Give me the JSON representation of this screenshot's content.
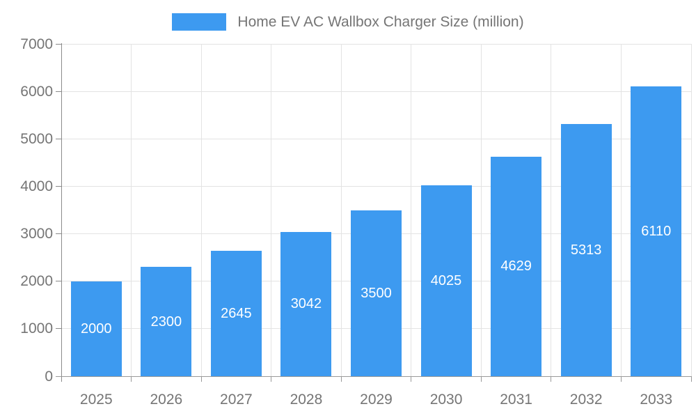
{
  "legend": {
    "label": "Home EV AC Wallbox Charger Size (million)"
  },
  "chart_data": {
    "type": "bar",
    "title": "Home EV AC Wallbox Charger Size (million)",
    "series_name": "Home EV AC Wallbox Charger Size (million)",
    "categories": [
      "2025",
      "2026",
      "2027",
      "2028",
      "2029",
      "2030",
      "2031",
      "2032",
      "2033"
    ],
    "values": [
      2000,
      2300,
      2645,
      3042,
      3500,
      4025,
      4629,
      5313,
      6110
    ],
    "value_labels": [
      "2000",
      "2300",
      "2645",
      "3042",
      "3500",
      "4025",
      "4629",
      "5313",
      "6110"
    ],
    "xlabel": "",
    "ylabel": "",
    "ylim": [
      0,
      7000
    ],
    "ytick_interval": 1000,
    "ytick_labels": [
      "0",
      "1000",
      "2000",
      "3000",
      "4000",
      "5000",
      "6000",
      "7000"
    ],
    "grid": true,
    "legend_position": "top",
    "colors": {
      "bar": "#3d9af0",
      "value_label": "#ffffff",
      "axis_label": "#757575",
      "gridline": "#e3e3e3",
      "axis_line": "#8a8a8a",
      "x_axis_line": "#999999"
    }
  }
}
